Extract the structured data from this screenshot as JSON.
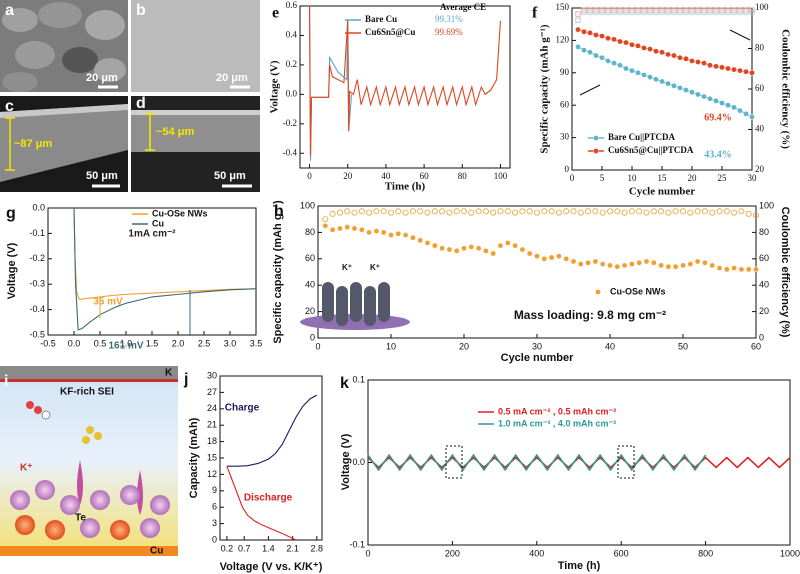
{
  "images": {
    "a": {
      "label": "a",
      "scale": "20 μm"
    },
    "b": {
      "label": "b",
      "scale": "20 μm"
    },
    "c": {
      "label": "c",
      "thickness": "~87 μm",
      "scale": "50 μm"
    },
    "d": {
      "label": "d",
      "thickness": "~54 μm",
      "scale": "50 μm"
    },
    "i": {
      "label": "i",
      "top": "K",
      "layer": "KF-rich SEI",
      "ion": "K⁺",
      "element": "Te",
      "bottom": "Cu"
    }
  },
  "chart_data": [
    {
      "type": "line",
      "panel_label": "e",
      "xlabel": "Time (h)",
      "ylabel": "Voltage (V)",
      "legend_title": "Average CE",
      "xlim": [
        -5,
        105
      ],
      "ylim": [
        -0.5,
        0.6
      ],
      "xticks": [
        0,
        20,
        40,
        60,
        80,
        100
      ],
      "yticks": [
        -0.4,
        -0.2,
        {
          "value": 0,
          "label": "0.0"
        },
        0.2,
        0.4,
        0.6
      ],
      "series": [
        {
          "name": "Bare Cu",
          "note": "99.31%",
          "color": "#5aa7c4",
          "style": "line",
          "x": [
            0,
            0.5,
            1,
            10,
            10.5,
            15,
            19.5,
            20,
            20.5,
            22
          ],
          "values": [
            0.6,
            -0.45,
            -0.02,
            -0.02,
            0.25,
            0.15,
            0.1,
            0.5,
            -0.25,
            0.0
          ]
        },
        {
          "name": "Cu6Sn5@Cu",
          "note": "99.69%",
          "color": "#e0451f",
          "style": "line",
          "x": [
            0,
            0.5,
            1,
            10,
            10.5,
            12,
            15,
            18,
            20,
            20.5,
            21,
            23,
            25,
            27,
            30,
            32,
            35,
            37,
            40,
            42,
            45,
            47,
            50,
            52,
            55,
            57,
            60,
            62,
            65,
            67,
            70,
            72,
            75,
            77,
            80,
            82,
            85,
            87,
            90,
            92,
            95,
            98,
            100
          ],
          "values": [
            0.6,
            -0.42,
            -0.02,
            -0.02,
            0.2,
            0.12,
            0.1,
            0.08,
            0.5,
            -0.25,
            0.02,
            0.0,
            0.1,
            -0.07,
            0.05,
            -0.07,
            0.05,
            -0.07,
            0.05,
            -0.07,
            0.05,
            -0.07,
            0.05,
            -0.07,
            0.05,
            -0.07,
            0.05,
            -0.07,
            0.05,
            -0.07,
            0.05,
            -0.07,
            0.05,
            -0.07,
            0.05,
            -0.07,
            0.05,
            -0.07,
            0.05,
            0.0,
            0.03,
            0.1,
            0.5
          ]
        }
      ]
    },
    {
      "type": "line",
      "panel_label": "f",
      "xlabel": "Cycle number",
      "ylabel": "Specific capacity (mAh g⁻¹)",
      "y2label": "Coulombic efficiency (%)",
      "xlim": [
        0,
        30
      ],
      "ylim": [
        0,
        150
      ],
      "y2lim": [
        20,
        100
      ],
      "xticks": [
        0,
        5,
        10,
        15,
        20,
        25,
        30
      ],
      "yticks": [
        0,
        30,
        60,
        90,
        120,
        150
      ],
      "y2ticks": [
        20,
        40,
        60,
        80,
        100
      ],
      "annotations": [
        "69.4%",
        "43.4%"
      ],
      "series": [
        {
          "name": "Bare Cu||PTCDA",
          "color": "#5fb4c9",
          "style": "line markers",
          "marker": "circle",
          "ce_color": "#9fc8d8",
          "x": [
            1,
            2,
            3,
            4,
            5,
            6,
            7,
            8,
            9,
            10,
            11,
            12,
            13,
            14,
            15,
            16,
            17,
            18,
            19,
            20,
            21,
            22,
            23,
            24,
            25,
            26,
            27,
            28,
            29,
            30
          ],
          "values": [
            114,
            111,
            109,
            106,
            104,
            101,
            99,
            97,
            94,
            92,
            90,
            88,
            86,
            84,
            82,
            80,
            78,
            76,
            74,
            72,
            70,
            68,
            66,
            64,
            62,
            60,
            58,
            55,
            52,
            49
          ],
          "ce_values": [
            94,
            98,
            98,
            98,
            98,
            98,
            98,
            98,
            98,
            98,
            98,
            98,
            98,
            98,
            98,
            98,
            98,
            98,
            98,
            98,
            98,
            98,
            98,
            98,
            98,
            98,
            98,
            98,
            98,
            98
          ]
        },
        {
          "name": "Cu6Sn5@Cu||PTCDA",
          "color": "#e0451f",
          "style": "line markers",
          "marker": "circle",
          "ce_color": "#f0a090",
          "x": [
            1,
            2,
            3,
            4,
            5,
            6,
            7,
            8,
            9,
            10,
            11,
            12,
            13,
            14,
            15,
            16,
            17,
            18,
            19,
            20,
            21,
            22,
            23,
            24,
            25,
            26,
            27,
            28,
            29,
            30
          ],
          "values": [
            130,
            128,
            127,
            125,
            124,
            122,
            121,
            119,
            118,
            116,
            115,
            113,
            112,
            110,
            109,
            107,
            106,
            104,
            103,
            101,
            100,
            99,
            97,
            96,
            95,
            94,
            93,
            92,
            91,
            90
          ],
          "ce_values": [
            97,
            99,
            99,
            99,
            99,
            99,
            99,
            99,
            99,
            99,
            99,
            99,
            99,
            99,
            99,
            99,
            99,
            99,
            99,
            99,
            99,
            99,
            99,
            99,
            99,
            99,
            99,
            99,
            99,
            99
          ]
        }
      ]
    },
    {
      "type": "line",
      "panel_label": "g",
      "xlabel": null,
      "ylabel": "Voltage (V)",
      "xlim": [
        -0.5,
        3.5
      ],
      "ylim": [
        -0.5,
        0
      ],
      "xticks": [
        -0.5,
        {
          "value": 0,
          "label": "0.0"
        },
        0.5,
        {
          "value": 1,
          "label": "1.0"
        },
        1.5,
        {
          "value": 2,
          "label": "2.0"
        },
        2.5,
        {
          "value": 3,
          "label": "3.0"
        },
        3.5
      ],
      "yticks": [
        -0.5,
        -0.4,
        -0.3,
        -0.2,
        -0.1,
        {
          "value": 0,
          "label": "0.0"
        }
      ],
      "annotations": [
        "1mA cm⁻²",
        "35 mV",
        "161 mV"
      ],
      "series": [
        {
          "name": "Cu-OSe NWs",
          "color": "#f0a030",
          "style": "line",
          "x": [
            0,
            0.02,
            0.05,
            0.1,
            0.3,
            0.5,
            0.7,
            1,
            1.5,
            2,
            2.5,
            3,
            3.5
          ],
          "values": [
            0,
            -0.2,
            -0.33,
            -0.36,
            -0.355,
            -0.35,
            -0.345,
            -0.34,
            -0.335,
            -0.33,
            -0.325,
            -0.32,
            -0.318
          ]
        },
        {
          "name": "Cu",
          "color": "#3a6b70",
          "style": "line",
          "x": [
            0,
            0.03,
            0.08,
            0.15,
            0.3,
            0.5,
            0.8,
            1,
            1.5,
            2,
            2.5,
            3,
            3.5
          ],
          "values": [
            0,
            -0.3,
            -0.48,
            -0.475,
            -0.45,
            -0.42,
            -0.39,
            -0.375,
            -0.35,
            -0.34,
            -0.33,
            -0.322,
            -0.318
          ]
        }
      ]
    },
    {
      "type": "scatter",
      "panel_label": "h",
      "xlabel": "Cycle number",
      "ylabel": "Specific capacity (mAh g⁻¹)",
      "y2label": "Coulombic efficiency (%)",
      "xlim": [
        0,
        60
      ],
      "ylim": [
        0,
        100
      ],
      "y2lim": [
        0,
        100
      ],
      "xticks": [
        0,
        10,
        20,
        30,
        40,
        50,
        60
      ],
      "yticks": [
        0,
        20,
        40,
        60,
        80,
        100
      ],
      "y2ticks": [
        0,
        20,
        40,
        60,
        80,
        100
      ],
      "annotations": [
        "Mass loading: 9.8 mg cm⁻²"
      ],
      "inset_labels": [
        "K⁺",
        "K⁺"
      ],
      "series": [
        {
          "name": "Cu-OSe NWs",
          "color": "#f0a030",
          "style": "markers",
          "marker": "circle",
          "ce_color": "#f0a030",
          "x": [
            1,
            2,
            3,
            4,
            5,
            6,
            7,
            8,
            9,
            10,
            11,
            12,
            13,
            14,
            15,
            16,
            17,
            18,
            19,
            20,
            21,
            22,
            23,
            24,
            25,
            26,
            27,
            28,
            29,
            30,
            31,
            32,
            33,
            34,
            35,
            36,
            37,
            38,
            39,
            40,
            41,
            42,
            43,
            44,
            45,
            46,
            47,
            48,
            49,
            50,
            51,
            52,
            53,
            54,
            55,
            56,
            57,
            58,
            59,
            60
          ],
          "values": [
            85,
            82,
            83,
            84,
            83,
            82,
            80,
            81,
            80,
            78,
            79,
            78,
            76,
            74,
            72,
            70,
            68,
            67,
            66,
            68,
            69,
            68,
            66,
            64,
            70,
            72,
            70,
            67,
            64,
            62,
            60,
            61,
            62,
            60,
            58,
            56,
            57,
            58,
            56,
            55,
            54,
            55,
            56,
            57,
            58,
            57,
            55,
            54,
            54,
            55,
            56,
            58,
            57,
            55,
            53,
            52,
            53,
            52,
            52,
            52
          ],
          "ce_values": [
            90,
            94,
            95,
            96,
            95,
            96,
            95,
            96,
            96,
            95,
            96,
            95,
            96,
            96,
            95,
            96,
            96,
            95,
            96,
            96,
            95,
            96,
            96,
            95,
            96,
            96,
            95,
            96,
            96,
            95,
            96,
            96,
            95,
            96,
            96,
            95,
            96,
            96,
            95,
            96,
            96,
            95,
            96,
            96,
            95,
            96,
            96,
            95,
            96,
            96,
            95,
            96,
            96,
            95,
            96,
            96,
            95,
            96,
            94,
            93
          ]
        }
      ]
    },
    {
      "type": "line",
      "panel_label": "j",
      "xlabel": "Voltage (V vs. K/K⁺)",
      "ylabel": "Capacity (mAh)",
      "xlim": [
        0,
        2.95
      ],
      "ylim": [
        0,
        30
      ],
      "xticks": [
        0.2,
        0.7,
        1.4,
        2.1,
        2.8
      ],
      "yticks": [
        0,
        3,
        6,
        9,
        12,
        15,
        18,
        21,
        24,
        27,
        30
      ],
      "annotations": [
        "Charge",
        "Discharge"
      ],
      "series": [
        {
          "name": null,
          "color": "#1a1a5e",
          "style": "line",
          "x": [
            0.2,
            0.5,
            0.8,
            1.1,
            1.4,
            1.6,
            1.8,
            2.0,
            2.2,
            2.4,
            2.6,
            2.8
          ],
          "values": [
            13.5,
            13.5,
            13.6,
            14,
            14.8,
            15.8,
            17.5,
            20,
            22.5,
            24.5,
            25.8,
            26.5
          ]
        },
        {
          "name": null,
          "color": "#e02020",
          "style": "line",
          "x": [
            0.2,
            0.35,
            0.5,
            0.65,
            0.8,
            1.0,
            1.2,
            1.5,
            1.8,
            2.1,
            2.2
          ],
          "values": [
            13.5,
            11,
            8.5,
            6,
            4.5,
            3.5,
            2.8,
            2,
            1.2,
            0.3,
            0
          ]
        }
      ]
    },
    {
      "type": "line",
      "panel_label": "k",
      "xlabel": "Time (h)",
      "ylabel": "Voltage (V)",
      "xlim": [
        0,
        1000
      ],
      "ylim": [
        -0.1,
        0.1
      ],
      "xticks": [
        0,
        200,
        400,
        600,
        800,
        1000
      ],
      "yticks": [
        -0.1,
        {
          "value": 0,
          "label": "0.0"
        },
        0.1
      ],
      "series": [
        {
          "name": "0.5 mA cm⁻² , 0.5 mAh cm⁻²",
          "color": "#e02020",
          "style": "line",
          "x": [
            0,
            25,
            50,
            75,
            100,
            125,
            150,
            175,
            200,
            225,
            250,
            275,
            300,
            325,
            350,
            375,
            400,
            425,
            450,
            475,
            500,
            525,
            550,
            575,
            600,
            625,
            650,
            675,
            700,
            725,
            750,
            775,
            800,
            825,
            850,
            875,
            900,
            925,
            950,
            975,
            1000
          ],
          "values": [
            0.006,
            -0.006,
            0.006,
            -0.006,
            0.006,
            -0.006,
            0.006,
            -0.006,
            0.006,
            -0.006,
            0.006,
            -0.006,
            0.006,
            -0.006,
            0.006,
            -0.006,
            0.006,
            -0.006,
            0.006,
            -0.006,
            0.006,
            -0.006,
            0.006,
            -0.006,
            0.006,
            -0.006,
            0.006,
            -0.006,
            0.006,
            -0.006,
            0.006,
            -0.006,
            0.006,
            -0.006,
            0.006,
            -0.006,
            0.006,
            -0.006,
            0.006,
            -0.006,
            0.006
          ]
        },
        {
          "name": "1.0 mA cm⁻² , 4.0 mAh cm⁻²",
          "color": "#2a9a98",
          "style": "line",
          "x": [
            0,
            25,
            50,
            75,
            100,
            125,
            150,
            175,
            200,
            225,
            250,
            275,
            300,
            325,
            350,
            375,
            400,
            425,
            450,
            475,
            500,
            525,
            550,
            575,
            600,
            625,
            650,
            675,
            700,
            725,
            750,
            775,
            800
          ],
          "values": [
            0.009,
            -0.009,
            0.009,
            -0.009,
            0.009,
            -0.009,
            0.009,
            -0.009,
            0.009,
            -0.009,
            0.009,
            -0.009,
            0.009,
            -0.009,
            0.009,
            -0.009,
            0.009,
            -0.009,
            0.009,
            -0.009,
            0.009,
            -0.009,
            0.009,
            -0.009,
            0.009,
            -0.009,
            0.009,
            -0.009,
            0.009,
            -0.009,
            0.009,
            -0.009,
            0.009
          ]
        }
      ]
    }
  ]
}
